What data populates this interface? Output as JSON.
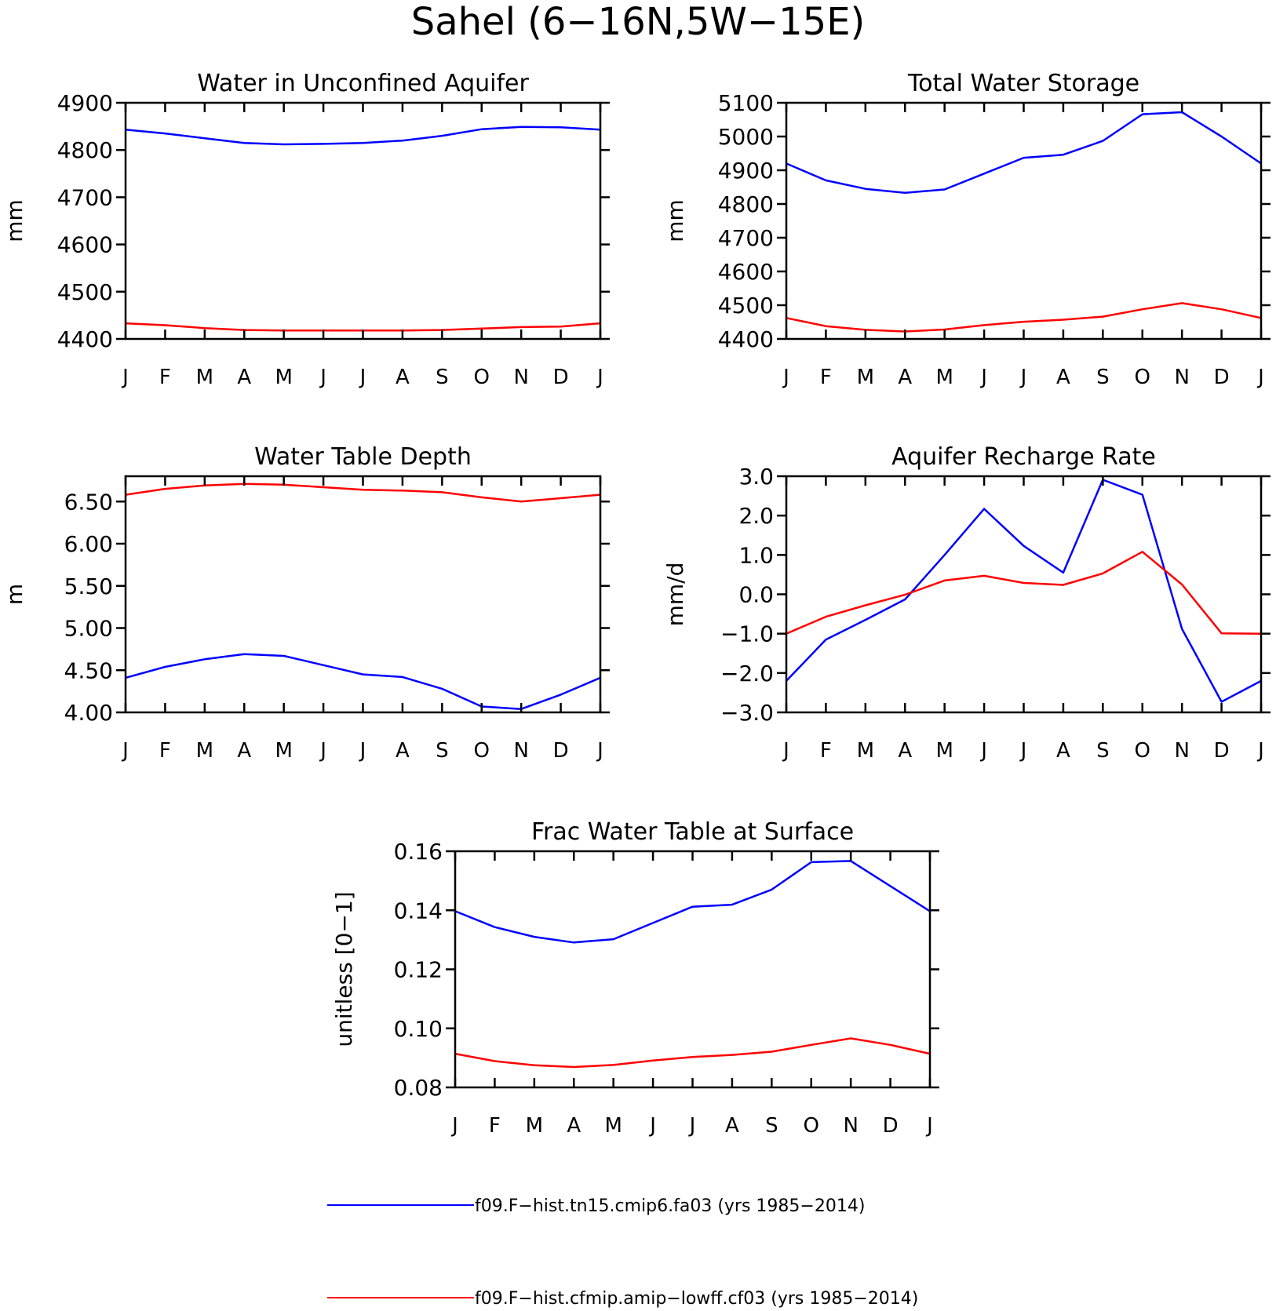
{
  "figure": {
    "title": "Sahel (6−16N,5W−15E)"
  },
  "legend": [
    {
      "label": "f09.F−hist.tn15.cmip6.fa03 (yrs 1985−2014)",
      "color": "#0000ff"
    },
    {
      "label": "f09.F−hist.cfmip.amip−lowff.cf03 (yrs 1985−2014)",
      "color": "#ff0000"
    }
  ],
  "chart_data": [
    {
      "type": "line",
      "title": "Water in Unconfined Aquifer",
      "xlabel": "",
      "ylabel": "mm",
      "x": [
        "J",
        "F",
        "M",
        "A",
        "M",
        "J",
        "J",
        "A",
        "S",
        "O",
        "N",
        "D",
        "J"
      ],
      "ylim": [
        4400,
        4900
      ],
      "yticks": [
        4400,
        4500,
        4600,
        4700,
        4800,
        4900
      ],
      "yticklabels": [
        "4400",
        "4500",
        "4600",
        "4700",
        "4800",
        "4900"
      ],
      "grid": false,
      "series": [
        {
          "name": "f09.F−hist.tn15.cmip6.fa03 (yrs 1985−2014)",
          "color": "#0000ff",
          "values": [
            4843,
            4835,
            4825,
            4815,
            4812,
            4813,
            4815,
            4820,
            4830,
            4844,
            4849,
            4848,
            4843
          ]
        },
        {
          "name": "f09.F−hist.cfmip.amip−lowff.cf03 (yrs 1985−2014)",
          "color": "#ff0000",
          "values": [
            4433,
            4429,
            4423,
            4419,
            4418,
            4418,
            4418,
            4418,
            4419,
            4422,
            4425,
            4426,
            4433
          ]
        }
      ]
    },
    {
      "type": "line",
      "title": "Total Water Storage",
      "xlabel": "",
      "ylabel": "mm",
      "x": [
        "J",
        "F",
        "M",
        "A",
        "M",
        "J",
        "J",
        "A",
        "S",
        "O",
        "N",
        "D",
        "J"
      ],
      "ylim": [
        4400,
        5100
      ],
      "yticks": [
        4400,
        4500,
        4600,
        4700,
        4800,
        4900,
        5000,
        5100
      ],
      "yticklabels": [
        "4400",
        "4500",
        "4600",
        "4700",
        "4800",
        "4900",
        "5000",
        "5100"
      ],
      "grid": false,
      "series": [
        {
          "name": "f09.F−hist.tn15.cmip6.fa03 (yrs 1985−2014)",
          "color": "#0000ff",
          "values": [
            4920,
            4870,
            4845,
            4833,
            4843,
            4890,
            4937,
            4946,
            4987,
            5066,
            5072,
            5000,
            4920
          ]
        },
        {
          "name": "f09.F−hist.cfmip.amip−lowff.cf03 (yrs 1985−2014)",
          "color": "#ff0000",
          "values": [
            4462,
            4438,
            4427,
            4422,
            4428,
            4441,
            4451,
            4457,
            4466,
            4488,
            4506,
            4488,
            4462
          ]
        }
      ]
    },
    {
      "type": "line",
      "title": "Water Table Depth",
      "xlabel": "",
      "ylabel": "m",
      "x": [
        "J",
        "F",
        "M",
        "A",
        "M",
        "J",
        "J",
        "A",
        "S",
        "O",
        "N",
        "D",
        "J"
      ],
      "ylim": [
        4.0,
        6.8
      ],
      "yticks": [
        4.0,
        4.5,
        5.0,
        5.5,
        6.0,
        6.5
      ],
      "yticklabels": [
        "4.00",
        "4.50",
        "5.00",
        "5.50",
        "6.00",
        "6.50"
      ],
      "grid": false,
      "series": [
        {
          "name": "f09.F−hist.tn15.cmip6.fa03 (yrs 1985−2014)",
          "color": "#0000ff",
          "values": [
            4.41,
            4.54,
            4.63,
            4.69,
            4.67,
            4.56,
            4.45,
            4.42,
            4.28,
            4.07,
            4.04,
            4.21,
            4.41
          ]
        },
        {
          "name": "f09.F−hist.cfmip.amip−lowff.cf03 (yrs 1985−2014)",
          "color": "#ff0000",
          "values": [
            6.58,
            6.65,
            6.69,
            6.71,
            6.7,
            6.67,
            6.64,
            6.63,
            6.61,
            6.55,
            6.5,
            6.54,
            6.58
          ]
        }
      ]
    },
    {
      "type": "line",
      "title": "Aquifer Recharge Rate",
      "xlabel": "",
      "ylabel": "mm/d",
      "x": [
        "J",
        "F",
        "M",
        "A",
        "M",
        "J",
        "J",
        "A",
        "S",
        "O",
        "N",
        "D",
        "J"
      ],
      "ylim": [
        -3.0,
        3.0
      ],
      "yticks": [
        -3,
        -2,
        -1,
        0,
        1,
        2,
        3
      ],
      "yticklabels": [
        "−3.0",
        "−2.0",
        "−1.0",
        "0.0",
        "1.0",
        "2.0",
        "3.0"
      ],
      "grid": false,
      "series": [
        {
          "name": "f09.F−hist.tn15.cmip6.fa03 (yrs 1985−2014)",
          "color": "#0000ff",
          "values": [
            -2.2,
            -1.15,
            -0.65,
            -0.13,
            1.0,
            2.17,
            1.23,
            0.55,
            2.91,
            2.53,
            -0.88,
            -2.73,
            -2.2
          ]
        },
        {
          "name": "f09.F−hist.cfmip.amip−lowff.cf03 (yrs 1985−2014)",
          "color": "#ff0000",
          "values": [
            -1.0,
            -0.57,
            -0.28,
            -0.01,
            0.35,
            0.47,
            0.29,
            0.24,
            0.53,
            1.08,
            0.25,
            -0.99,
            -1.0
          ]
        }
      ]
    },
    {
      "type": "line",
      "title": "Frac Water Table at Surface",
      "xlabel": "",
      "ylabel": "unitless [0−1]",
      "x": [
        "J",
        "F",
        "M",
        "A",
        "M",
        "J",
        "J",
        "A",
        "S",
        "O",
        "N",
        "D",
        "J"
      ],
      "ylim": [
        0.08,
        0.16
      ],
      "yticks": [
        0.08,
        0.1,
        0.12,
        0.14,
        0.16
      ],
      "yticklabels": [
        "0.08",
        "0.10",
        "0.12",
        "0.14",
        "0.16"
      ],
      "grid": false,
      "series": [
        {
          "name": "f09.F−hist.tn15.cmip6.fa03 (yrs 1985−2014)",
          "color": "#0000ff",
          "values": [
            0.1397,
            0.1343,
            0.131,
            0.1291,
            0.1302,
            0.1357,
            0.1412,
            0.1419,
            0.147,
            0.1563,
            0.1567,
            0.1482,
            0.1397
          ]
        },
        {
          "name": "f09.F−hist.cfmip.amip−lowff.cf03 (yrs 1985−2014)",
          "color": "#ff0000",
          "values": [
            0.0914,
            0.0889,
            0.0875,
            0.0869,
            0.0876,
            0.0891,
            0.0903,
            0.091,
            0.0921,
            0.0944,
            0.0966,
            0.0944,
            0.0914
          ]
        }
      ]
    }
  ]
}
